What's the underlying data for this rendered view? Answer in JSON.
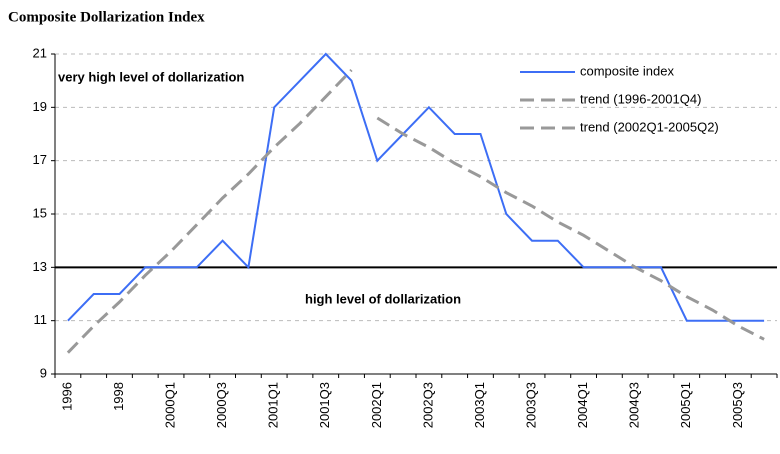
{
  "chart_data": {
    "type": "line",
    "title": "Composite Dollarization Index",
    "categories": [
      "1996",
      null,
      "1998",
      null,
      "2000Q1",
      null,
      "2000Q3",
      null,
      "2001Q1",
      null,
      "2001Q3",
      null,
      "2002Q1",
      null,
      "2002Q3",
      null,
      "2003Q1",
      null,
      "2003Q3",
      null,
      "2004Q1",
      null,
      "2004Q3",
      null,
      "2005Q1",
      null,
      "2005Q3",
      null
    ],
    "series": [
      {
        "name": "composite index",
        "color": "#3d6ef5",
        "dash": false,
        "values": [
          11,
          12,
          12,
          13,
          13,
          13,
          14,
          13,
          19,
          20,
          21,
          20,
          17,
          18,
          19,
          18,
          18,
          15,
          14,
          14,
          13,
          13,
          13,
          13,
          11,
          11,
          11,
          11
        ]
      },
      {
        "name": "trend (1996-2001Q4)",
        "color": "#999999",
        "dash": true,
        "values": [
          9.8,
          10.8,
          11.7,
          12.7,
          13.6,
          14.6,
          15.6,
          16.5,
          17.5,
          18.4,
          19.4,
          20.4,
          null,
          null,
          null,
          null,
          null,
          null,
          null,
          null,
          null,
          null,
          null,
          null,
          null,
          null,
          null,
          null
        ]
      },
      {
        "name": "trend (2002Q1-2005Q2)",
        "color": "#999999",
        "dash": true,
        "values": [
          null,
          null,
          null,
          null,
          null,
          null,
          null,
          null,
          null,
          null,
          null,
          null,
          18.6,
          18.0,
          17.5,
          16.9,
          16.4,
          15.8,
          15.3,
          14.7,
          14.2,
          13.6,
          13.0,
          12.5,
          11.9,
          11.4,
          10.8,
          10.3
        ]
      }
    ],
    "reference_line": 13,
    "annotations": [
      "very high level of dollarization",
      "high level of dollarization"
    ],
    "ylim": [
      9,
      21
    ],
    "yticks": [
      9,
      11,
      13,
      15,
      17,
      19,
      21
    ],
    "grid": true,
    "legend": "upper right"
  }
}
